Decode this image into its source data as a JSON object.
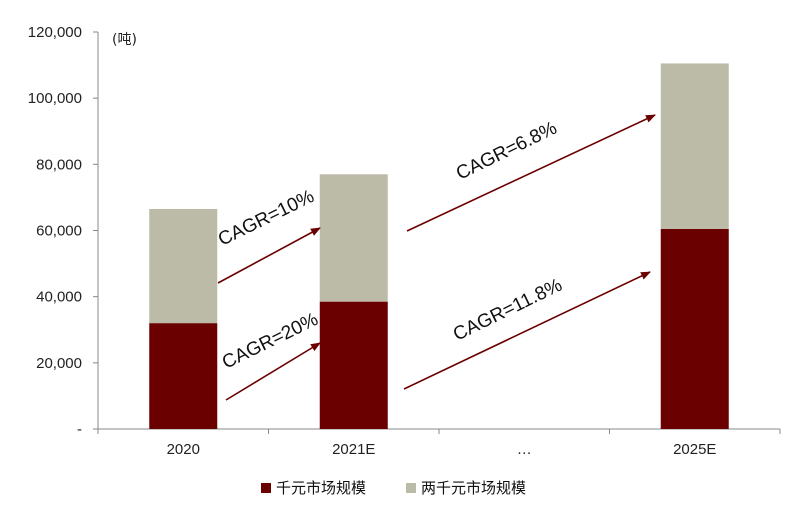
{
  "chart_data": {
    "type": "bar",
    "stacked": true,
    "unit_label": "(吨)",
    "categories": [
      "2020",
      "2021E",
      "…",
      "2025E"
    ],
    "series": [
      {
        "name": "千元市场规模",
        "color": "#6b0000",
        "values": [
          32000,
          38500,
          null,
          60500
        ]
      },
      {
        "name": "两千元市场规模",
        "color": "#bcbba8",
        "values": [
          34500,
          38500,
          null,
          50000
        ]
      }
    ],
    "y_ticks": [
      "-",
      "20,000",
      "40,000",
      "60,000",
      "80,000",
      "100,000",
      "120,000"
    ],
    "ylim": [
      0,
      120000
    ],
    "grid": false,
    "legend_position": "bottom-center",
    "annotations": [
      {
        "id": "cagr_2000_a",
        "text": "CAGR=10%"
      },
      {
        "id": "cagr_1000_a",
        "text": "CAGR=20%"
      },
      {
        "id": "cagr_2000_b",
        "text": "CAGR=6.8%"
      },
      {
        "id": "cagr_1000_b",
        "text": "CAGR=11.8%"
      }
    ],
    "arrow_color": "#6b0000"
  }
}
